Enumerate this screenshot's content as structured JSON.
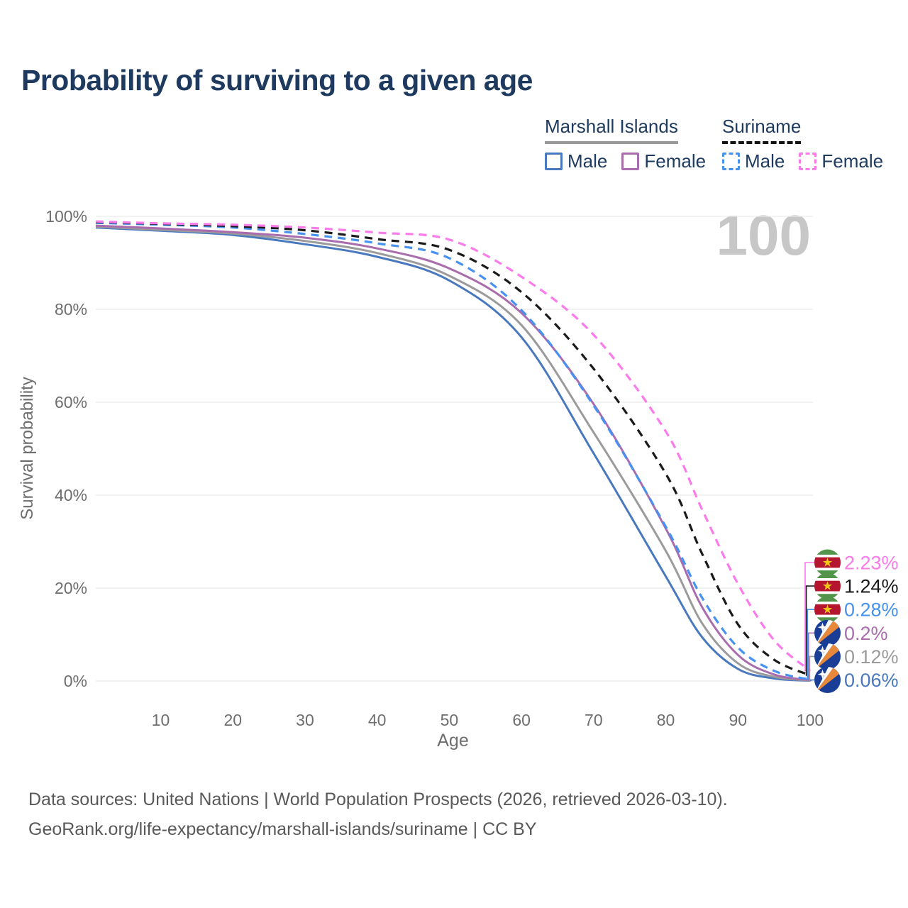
{
  "title": "Probability of surviving to a given age",
  "watermark": "100",
  "legend": {
    "groups": [
      {
        "name": "Marshall Islands",
        "line_style": "solid",
        "underline_color": "#999999",
        "items": [
          {
            "label": "Male",
            "color": "#4878be"
          },
          {
            "label": "Female",
            "color": "#a96cad"
          }
        ]
      },
      {
        "name": "Suriname",
        "line_style": "dashed",
        "underline_color": "#141414",
        "items": [
          {
            "label": "Male",
            "color": "#4791f0"
          },
          {
            "label": "Female",
            "color": "#fb7beb"
          }
        ]
      }
    ]
  },
  "chart_data": {
    "type": "line",
    "title": "Probability of surviving to a given age",
    "xlabel": "Age",
    "ylabel": "Survival probability",
    "xlim": [
      1,
      100
    ],
    "ylim": [
      0,
      100
    ],
    "xticks": [
      10,
      20,
      30,
      40,
      50,
      60,
      70,
      80,
      90,
      100
    ],
    "yticks": [
      0,
      20,
      40,
      60,
      80,
      100
    ],
    "ytick_suffix": "%",
    "grid": "horizontal",
    "x": [
      1,
      10,
      20,
      30,
      40,
      50,
      60,
      70,
      80,
      85,
      90,
      95,
      100
    ],
    "series": [
      {
        "name": "Marshall Islands Male",
        "country": "Marshall Islands",
        "sex": "Male",
        "color": "#4878be",
        "dash": "solid",
        "flag": "marshall-islands",
        "end_label": "0.06%",
        "values": [
          97.6,
          96.9,
          96.0,
          94.0,
          91.3,
          86.2,
          74.0,
          49.0,
          22.5,
          9.5,
          2.6,
          0.55,
          0.06
        ]
      },
      {
        "name": "Marshall Islands Both sexes",
        "country": "Marshall Islands",
        "sex": "Both sexes",
        "color": "#9b9b9b",
        "dash": "solid",
        "flag": "marshall-islands",
        "end_label": "0.12%",
        "values": [
          97.8,
          97.1,
          96.3,
          94.7,
          92.1,
          87.2,
          76.6,
          53.5,
          28.0,
          12.5,
          3.8,
          0.9,
          0.12
        ]
      },
      {
        "name": "Marshall Islands Female",
        "country": "Marshall Islands",
        "sex": "Female",
        "color": "#a96cad",
        "dash": "solid",
        "flag": "marshall-islands",
        "end_label": "0.2%",
        "values": [
          98.0,
          97.4,
          96.6,
          95.4,
          93.1,
          88.8,
          79.2,
          59.6,
          32.8,
          16.0,
          5.6,
          1.4,
          0.2
        ]
      },
      {
        "name": "Suriname Male",
        "country": "Suriname",
        "sex": "Male",
        "color": "#4791f0",
        "dash": "dashed",
        "flag": "suriname",
        "end_label": "0.28%",
        "values": [
          98.6,
          98.2,
          97.6,
          96.2,
          94.2,
          91.0,
          79.8,
          59.3,
          33.2,
          18.0,
          7.2,
          2.2,
          0.28
        ]
      },
      {
        "name": "Suriname Both sexes",
        "country": "Suriname",
        "sex": "Both sexes",
        "color": "#1a1a1a",
        "dash": "dashed",
        "flag": "suriname",
        "end_label": "1.24%",
        "values": [
          98.8,
          98.4,
          97.9,
          97.0,
          95.1,
          92.8,
          83.7,
          67.2,
          44.6,
          27.5,
          12.2,
          4.6,
          1.24
        ]
      },
      {
        "name": "Suriname Female",
        "country": "Suriname",
        "sex": "Female",
        "color": "#fb7beb",
        "dash": "dashed",
        "flag": "suriname",
        "end_label": "2.23%",
        "values": [
          98.9,
          98.5,
          98.2,
          97.6,
          96.5,
          95.0,
          87.0,
          74.5,
          53.7,
          37.0,
          20.9,
          8.8,
          2.23
        ]
      }
    ],
    "legend_position": "top-right"
  },
  "footer": {
    "line1": "Data sources: United Nations | World Population Prospects (2026, retrieved 2026-03-10).",
    "line2": "GeoRank.org/life-expectancy/marshall-islands/suriname | CC BY"
  }
}
